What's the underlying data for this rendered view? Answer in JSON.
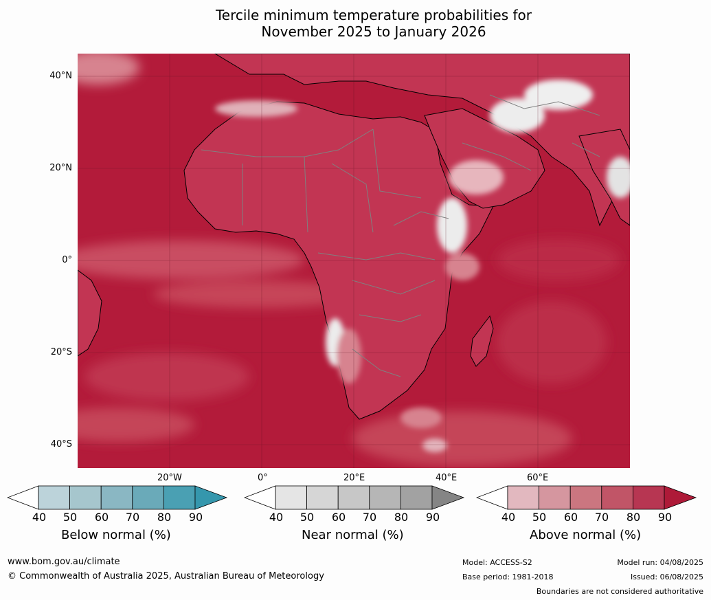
{
  "title_line1": "Tercile minimum temperature probabilities for",
  "title_line2": "November 2025 to January 2026",
  "map": {
    "lat_labels": [
      "40°N",
      "20°N",
      "0°",
      "20°S",
      "40°S"
    ],
    "lon_labels": [
      "20°W",
      "0°",
      "20°E",
      "40°E",
      "60°E"
    ],
    "ocean_color": "#b31b3a",
    "land_color": "#c23553",
    "border_color": "#808080",
    "coast_color": "#000000"
  },
  "colorbars": [
    {
      "label": "Below normal (%)",
      "ticks": [
        "40",
        "50",
        "60",
        "70",
        "80",
        "90"
      ],
      "colors": [
        "#ffffff",
        "#bcd3da",
        "#a6c6cd",
        "#8ab7c3",
        "#6aaab9",
        "#4aa0b3",
        "#3597ad"
      ]
    },
    {
      "label": "Near normal (%)",
      "ticks": [
        "40",
        "50",
        "60",
        "70",
        "80",
        "90"
      ],
      "colors": [
        "#ffffff",
        "#e5e5e5",
        "#d6d6d6",
        "#c7c7c7",
        "#b6b6b6",
        "#a2a2a2",
        "#858585"
      ]
    },
    {
      "label": "Above normal (%)",
      "ticks": [
        "40",
        "50",
        "60",
        "70",
        "80",
        "90"
      ],
      "colors": [
        "#ffffff",
        "#e2b8bf",
        "#d5969f",
        "#cb7680",
        "#c15567",
        "#b73652",
        "#ae1a38"
      ]
    }
  ],
  "footer": {
    "url": "www.bom.gov.au/climate",
    "copyright": "© Commonwealth of Australia 2025, Australian Bureau of Meteorology",
    "model": "Model: ACCESS-S2",
    "base_period": "Base period: 1981-2018",
    "model_run": "Model run: 04/08/2025",
    "issued": "Issued: 06/08/2025",
    "disclaimer": "Boundaries are not considered authoritative"
  }
}
